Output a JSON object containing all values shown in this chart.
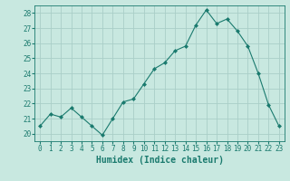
{
  "x": [
    0,
    1,
    2,
    3,
    4,
    5,
    6,
    7,
    8,
    9,
    10,
    11,
    12,
    13,
    14,
    15,
    16,
    17,
    18,
    19,
    20,
    21,
    22,
    23
  ],
  "y": [
    20.5,
    21.3,
    21.1,
    21.7,
    21.1,
    20.5,
    19.9,
    21.0,
    22.1,
    22.3,
    23.3,
    24.3,
    24.7,
    25.5,
    25.8,
    27.2,
    28.2,
    27.3,
    27.6,
    26.8,
    25.8,
    24.0,
    21.9,
    20.5
  ],
  "line_color": "#1a7a6e",
  "marker": "D",
  "marker_size": 2,
  "bg_color": "#c8e8e0",
  "grid_color": "#aacec8",
  "xlabel": "Humidex (Indice chaleur)",
  "xlim": [
    -0.5,
    23.5
  ],
  "ylim": [
    19.5,
    28.5
  ],
  "yticks": [
    20,
    21,
    22,
    23,
    24,
    25,
    26,
    27,
    28
  ],
  "xticks": [
    0,
    1,
    2,
    3,
    4,
    5,
    6,
    7,
    8,
    9,
    10,
    11,
    12,
    13,
    14,
    15,
    16,
    17,
    18,
    19,
    20,
    21,
    22,
    23
  ],
  "tick_fontsize": 5.5,
  "label_fontsize": 7
}
